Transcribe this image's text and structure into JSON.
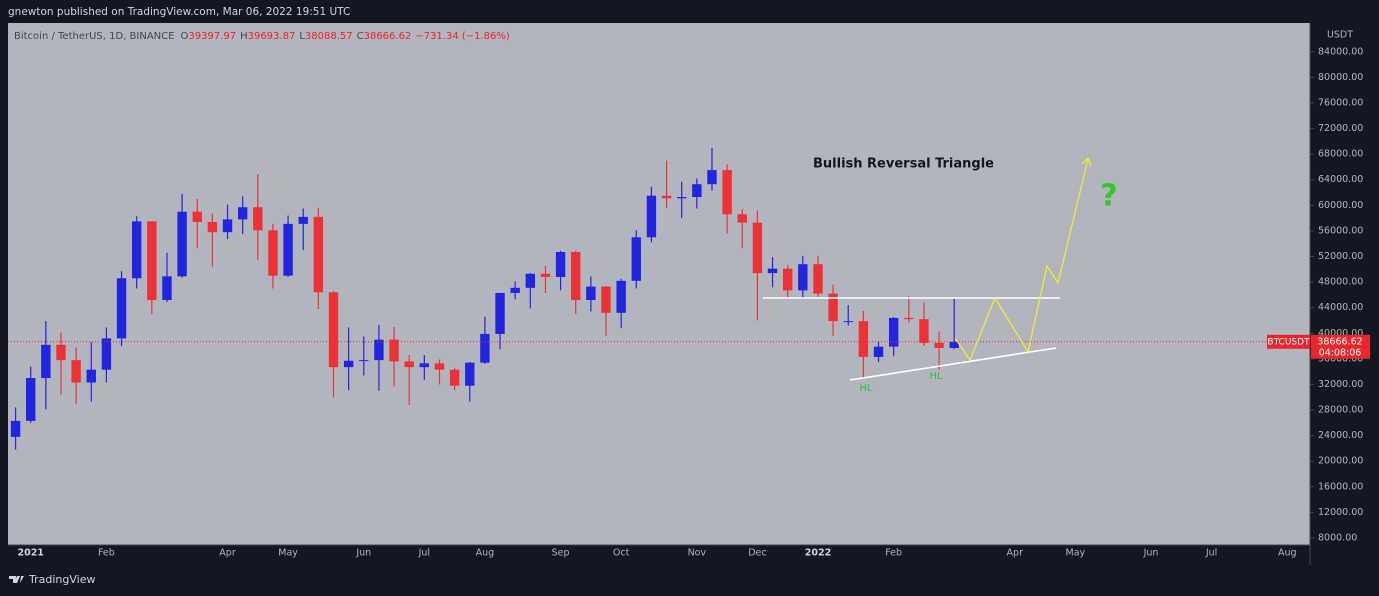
{
  "header": {
    "published": "gnewton published on TradingView.com, Mar 06, 2022 19:51 UTC"
  },
  "footer": {
    "brand": "TradingView"
  },
  "chart_data": {
    "type": "candlestick",
    "legend": {
      "symbol": "Bitcoin / TetherUS, 1D, BINANCE",
      "ohlc": [
        {
          "key": "O",
          "value": "39397.97"
        },
        {
          "key": "H",
          "value": "39693.87"
        },
        {
          "key": "L",
          "value": "38088.57"
        },
        {
          "key": "C",
          "value": "38666.62"
        }
      ],
      "change": "−731.34 (−1.86%)"
    },
    "axis_unit": "USDT",
    "symbol": "BTCUSDT",
    "last_price": 38666.62,
    "countdown": "04:08:06",
    "annotations": {
      "title": "Bullish Reversal Triangle",
      "hl": [
        "HL",
        "HL"
      ],
      "question": "?"
    },
    "up_color": "#2125e0",
    "down_color": "#ec3237",
    "categories": [
      null,
      "2021",
      null,
      null,
      null,
      null,
      "Feb",
      null,
      null,
      null,
      null,
      null,
      null,
      null,
      "Apr",
      null,
      null,
      null,
      "May",
      null,
      null,
      null,
      null,
      "Jun",
      null,
      null,
      null,
      "Jul",
      null,
      null,
      null,
      "Aug",
      null,
      null,
      null,
      null,
      "Sep",
      null,
      null,
      null,
      "Oct",
      null,
      null,
      null,
      null,
      "Nov",
      null,
      null,
      null,
      "Dec",
      null,
      null,
      null,
      "2022",
      null,
      null,
      null,
      null,
      "Feb",
      null,
      null,
      null,
      null,
      null,
      null,
      null,
      "Apr",
      null,
      null,
      null,
      "May",
      null,
      null,
      null,
      null,
      "Jun",
      null,
      null,
      null,
      "Jul",
      null,
      null,
      null,
      null,
      "Aug",
      null
    ],
    "open": [
      23800,
      26300,
      33000,
      38200,
      35800,
      32300,
      34300,
      39200,
      48600,
      57500,
      45200,
      48900,
      59000,
      57400,
      55800,
      57800,
      59700,
      56100,
      49000,
      57100,
      58200,
      46400,
      34700,
      35700,
      35800,
      39000,
      35600,
      34700,
      35300,
      34300,
      31800,
      35400,
      39900,
      46300,
      47100,
      49300,
      48800,
      52700,
      45200,
      47300,
      43200,
      48200,
      55000,
      61500,
      61100,
      61300,
      63300,
      65500,
      58600,
      57300,
      49400,
      50100,
      46700,
      50800,
      46200,
      41900,
      41900,
      36300,
      37900,
      42400,
      42200,
      38500,
      37700,
      null,
      null,
      null,
      null,
      null,
      null,
      null,
      null,
      null,
      null,
      null,
      null,
      null,
      null,
      null,
      null,
      null,
      null,
      null,
      null,
      null,
      null,
      null
    ],
    "high": [
      28400,
      34800,
      41900,
      40100,
      37800,
      38600,
      40900,
      49700,
      58300,
      57500,
      52600,
      61800,
      61000,
      58700,
      60100,
      61400,
      64900,
      57100,
      58400,
      59500,
      59600,
      46600,
      40900,
      39500,
      41300,
      41000,
      36600,
      36600,
      35900,
      34600,
      35500,
      42600,
      46200,
      48100,
      49400,
      50500,
      52900,
      52900,
      48900,
      47400,
      48500,
      56100,
      62900,
      67000,
      63700,
      64200,
      69000,
      66400,
      59400,
      59200,
      51900,
      50600,
      52100,
      52100,
      47600,
      44400,
      43500,
      38800,
      42500,
      45800,
      44800,
      40300,
      45400,
      null,
      null,
      null,
      null,
      null,
      null,
      null,
      null,
      null,
      null,
      null,
      null,
      null,
      null,
      null,
      null,
      null,
      null,
      null,
      null,
      null,
      null,
      null
    ],
    "low": [
      21800,
      26000,
      28100,
      30400,
      28900,
      29300,
      32300,
      38000,
      47000,
      43000,
      44900,
      48700,
      53300,
      50400,
      54700,
      55500,
      51500,
      47000,
      48800,
      53000,
      43800,
      30000,
      31100,
      33400,
      31000,
      31700,
      28800,
      32700,
      32000,
      31100,
      29300,
      35200,
      37500,
      45300,
      43900,
      46300,
      46700,
      43000,
      43400,
      39600,
      40800,
      47000,
      54200,
      59600,
      58000,
      59500,
      62300,
      55600,
      53300,
      42000,
      47200,
      45500,
      45600,
      45700,
      39600,
      41200,
      33000,
      35500,
      36400,
      41700,
      38000,
      34300,
      37500,
      null,
      null,
      null,
      null,
      null,
      null,
      null,
      null,
      null,
      null,
      null,
      null,
      null,
      null,
      null,
      null,
      null,
      null,
      null,
      null,
      null,
      null,
      null
    ],
    "close": [
      26300,
      33000,
      38200,
      35800,
      32300,
      34300,
      39200,
      48600,
      57500,
      45200,
      48900,
      59000,
      57400,
      55800,
      57800,
      59700,
      56100,
      49000,
      57100,
      58200,
      46400,
      34700,
      35700,
      35800,
      39000,
      35600,
      34700,
      35300,
      34300,
      31800,
      35400,
      39900,
      46300,
      47100,
      49300,
      48800,
      52700,
      45200,
      47300,
      43200,
      48200,
      55000,
      61500,
      61100,
      61300,
      63300,
      65500,
      58600,
      57300,
      49400,
      50100,
      46700,
      50800,
      46200,
      41900,
      41900,
      36300,
      37900,
      42400,
      42200,
      38500,
      37700,
      38666.62,
      null,
      null,
      null,
      null,
      null,
      null,
      null,
      null,
      null,
      null,
      null,
      null,
      null,
      null,
      null,
      null,
      null,
      null,
      null,
      null,
      null,
      null,
      null
    ],
    "ylim": [
      6900,
      88500
    ],
    "yticks": [
      {
        "value": 8000,
        "label": "8000.00"
      },
      {
        "value": 12000,
        "label": "12000.00"
      },
      {
        "value": 16000,
        "label": "16000.00"
      },
      {
        "value": 20000,
        "label": "20000.00"
      },
      {
        "value": 24000,
        "label": "24000.00"
      },
      {
        "value": 28000,
        "label": "28000.00"
      },
      {
        "value": 32000,
        "label": "32000.00"
      },
      {
        "value": 36000,
        "label": "36000.00"
      },
      {
        "value": 40000,
        "label": "40000.00"
      },
      {
        "value": 44000,
        "label": "44000.00"
      },
      {
        "value": 48000,
        "label": "48000.00"
      },
      {
        "value": 52000,
        "label": "52000.00"
      },
      {
        "value": 56000,
        "label": "56000.00"
      },
      {
        "value": 60000,
        "label": "60000.00"
      },
      {
        "value": 64000,
        "label": "64000.00"
      },
      {
        "value": 68000,
        "label": "68000.00"
      },
      {
        "value": 72000,
        "label": "72000.00"
      },
      {
        "value": 76000,
        "label": "76000.00"
      },
      {
        "value": 80000,
        "label": "80000.00"
      },
      {
        "value": 84000,
        "label": "84000.00"
      }
    ],
    "grid": false
  }
}
